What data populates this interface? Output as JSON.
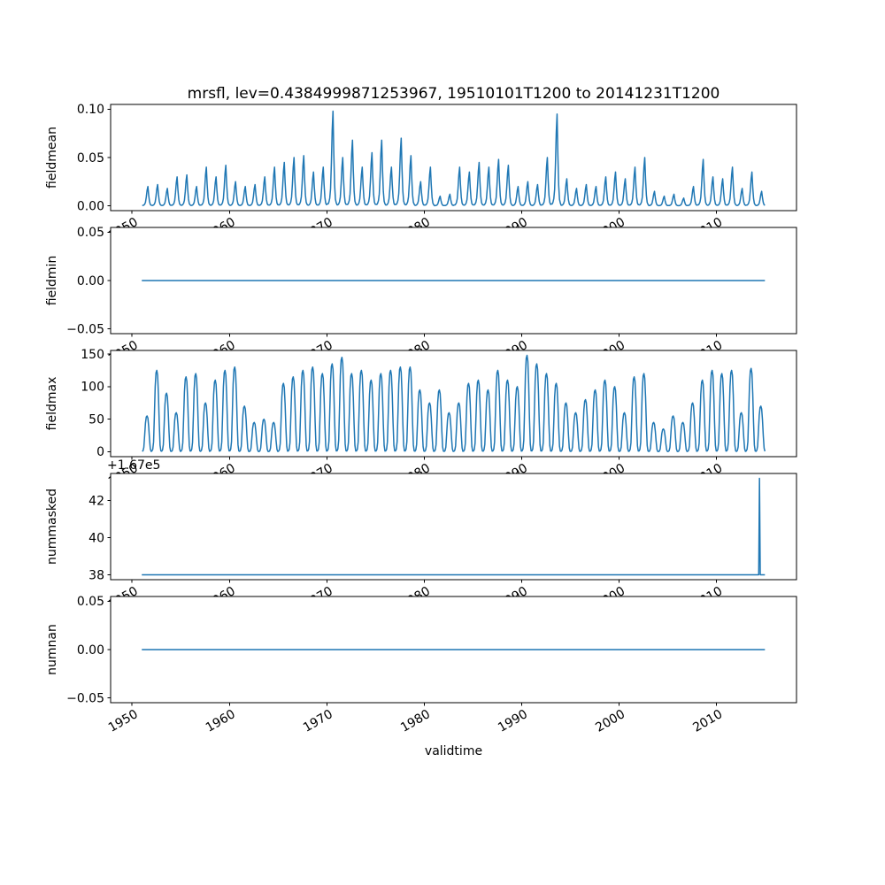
{
  "figure": {
    "title": "mrsfl, lev=0.4384999871253967, 19510101T1200 to 20141231T1200",
    "xlabel": "validtime",
    "line_color": "#1f77b4",
    "background": "#ffffff",
    "xlim": [
      1947.8,
      2018.2
    ],
    "x_tick_values": [
      1950,
      1960,
      1970,
      1980,
      1990,
      2000,
      2010
    ],
    "x_tick_labels": [
      "1950",
      "1960",
      "1970",
      "1980",
      "1990",
      "2000",
      "2010"
    ]
  },
  "chart_data": [
    {
      "type": "line",
      "ylabel": "fieldmean",
      "ylim": [
        -0.005,
        0.105
      ],
      "ytick_values": [
        0.0,
        0.05,
        0.1
      ],
      "ytick_labels": [
        "0.00",
        "0.05",
        "0.10"
      ],
      "x_range": [
        1951.0,
        2014.96
      ],
      "series": {
        "kind": "seasonal",
        "start_year": 1951,
        "seasonal_profile": [
          0.02,
          0.02,
          0.04,
          0.08,
          0.18,
          0.45,
          0.8,
          1.0,
          0.55,
          0.22,
          0.07,
          0.03
        ],
        "annual_peaks": [
          0.02,
          0.022,
          0.018,
          0.03,
          0.032,
          0.02,
          0.04,
          0.03,
          0.042,
          0.025,
          0.02,
          0.022,
          0.03,
          0.04,
          0.045,
          0.05,
          0.052,
          0.035,
          0.04,
          0.098,
          0.05,
          0.068,
          0.04,
          0.055,
          0.068,
          0.04,
          0.07,
          0.052,
          0.025,
          0.04,
          0.01,
          0.012,
          0.04,
          0.035,
          0.045,
          0.04,
          0.048,
          0.042,
          0.02,
          0.025,
          0.022,
          0.05,
          0.095,
          0.028,
          0.018,
          0.022,
          0.02,
          0.03,
          0.035,
          0.028,
          0.04,
          0.05,
          0.015,
          0.01,
          0.012,
          0.008,
          0.02,
          0.048,
          0.03,
          0.028,
          0.04,
          0.018,
          0.035,
          0.015
        ]
      }
    },
    {
      "type": "line",
      "ylabel": "fieldmin",
      "ylim": [
        -0.055,
        0.055
      ],
      "ytick_values": [
        -0.05,
        0.0,
        0.05
      ],
      "ytick_labels": [
        "−0.05",
        "0.00",
        "0.05"
      ],
      "x_range": [
        1951.0,
        2014.96
      ],
      "series": {
        "kind": "constant",
        "value": 0.0,
        "x_start": 1951.0,
        "x_end": 2014.96
      }
    },
    {
      "type": "line",
      "ylabel": "fieldmax",
      "ylim": [
        -7.5,
        155.5
      ],
      "ytick_values": [
        0,
        50,
        100,
        150
      ],
      "ytick_labels": [
        "0",
        "50",
        "100",
        "150"
      ],
      "x_range": [
        1951.0,
        2014.96
      ],
      "series": {
        "kind": "seasonal",
        "start_year": 1951,
        "seasonal_profile": [
          0.01,
          0.03,
          0.12,
          0.45,
          0.8,
          0.97,
          1.0,
          0.94,
          0.7,
          0.35,
          0.08,
          0.01
        ],
        "annual_peaks": [
          55,
          125,
          90,
          60,
          115,
          120,
          75,
          110,
          125,
          130,
          70,
          45,
          50,
          45,
          105,
          115,
          125,
          130,
          120,
          135,
          145,
          120,
          125,
          110,
          120,
          125,
          130,
          130,
          95,
          75,
          95,
          60,
          75,
          105,
          110,
          95,
          125,
          110,
          100,
          148,
          135,
          120,
          105,
          75,
          60,
          80,
          95,
          110,
          100,
          60,
          115,
          120,
          45,
          35,
          55,
          45,
          75,
          110,
          125,
          120,
          125,
          60,
          128,
          70
        ]
      }
    },
    {
      "type": "line",
      "ylabel": "nummasked",
      "offset_text": "+1.67e5",
      "ylim": [
        167037.74,
        167043.46
      ],
      "ytick_values": [
        167038,
        167040,
        167042
      ],
      "ytick_labels": [
        "38",
        "40",
        "42"
      ],
      "x_range": [
        1951.0,
        2014.96
      ],
      "series": {
        "kind": "constant_with_spike",
        "value": 167038,
        "x_start": 1951.0,
        "x_end": 2014.96,
        "spike_x": 2014.4,
        "spike_value": 167043.2
      }
    },
    {
      "type": "line",
      "ylabel": "numnan",
      "ylim": [
        -0.055,
        0.055
      ],
      "ytick_values": [
        -0.05,
        0.0,
        0.05
      ],
      "ytick_labels": [
        "−0.05",
        "0.00",
        "0.05"
      ],
      "x_range": [
        1951.0,
        2014.96
      ],
      "series": {
        "kind": "constant",
        "value": 0.0,
        "x_start": 1951.0,
        "x_end": 2014.96
      }
    }
  ]
}
